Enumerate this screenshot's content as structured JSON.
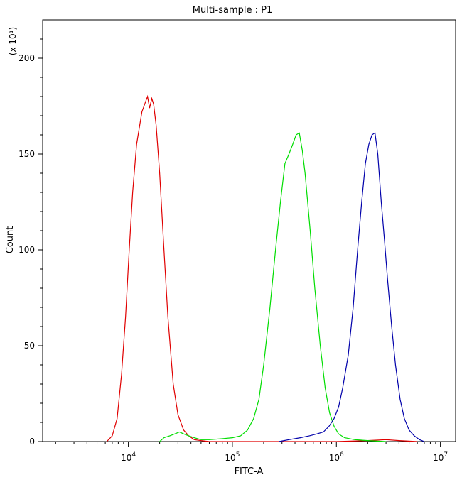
{
  "chart_data": {
    "type": "line",
    "title": "Multi-sample : P1",
    "xlabel": "FITC-A",
    "ylabel": "Count",
    "y_multiplier": "(x 10¹)",
    "x_scale": "log",
    "xlim": [
      1500,
      14000000
    ],
    "ylim": [
      0,
      220
    ],
    "x_ticks": [
      {
        "value": 10000,
        "base": "10",
        "exp": "4"
      },
      {
        "value": 100000,
        "base": "10",
        "exp": "5"
      },
      {
        "value": 1000000,
        "base": "10",
        "exp": "6"
      },
      {
        "value": 10000000,
        "base": "10",
        "exp": "7"
      }
    ],
    "y_ticks": [
      0,
      50,
      100,
      150,
      200
    ],
    "grid": false,
    "legend": "none",
    "series": [
      {
        "color": "#e00000",
        "points": [
          [
            6200,
            0
          ],
          [
            7000,
            3
          ],
          [
            7800,
            12
          ],
          [
            8600,
            35
          ],
          [
            9400,
            65
          ],
          [
            10200,
            100
          ],
          [
            11000,
            130
          ],
          [
            12000,
            155
          ],
          [
            13500,
            172
          ],
          [
            14800,
            178
          ],
          [
            15300,
            180
          ],
          [
            16000,
            174
          ],
          [
            16800,
            179
          ],
          [
            17500,
            176
          ],
          [
            18500,
            165
          ],
          [
            20000,
            140
          ],
          [
            22000,
            100
          ],
          [
            24000,
            65
          ],
          [
            27000,
            30
          ],
          [
            30000,
            14
          ],
          [
            34000,
            6
          ],
          [
            38000,
            3
          ],
          [
            43000,
            1
          ],
          [
            50000,
            0.5
          ],
          [
            60000,
            0
          ],
          [
            100000,
            0
          ],
          [
            1000000,
            0
          ],
          [
            2000000,
            0.5
          ],
          [
            3000000,
            1
          ],
          [
            4000000,
            0.5
          ],
          [
            6000000,
            0
          ]
        ]
      },
      {
        "color": "#00dd00",
        "points": [
          [
            20000,
            0
          ],
          [
            22000,
            2
          ],
          [
            25000,
            3
          ],
          [
            28000,
            4
          ],
          [
            31000,
            5
          ],
          [
            34000,
            4
          ],
          [
            38000,
            3
          ],
          [
            43000,
            2
          ],
          [
            50000,
            1
          ],
          [
            60000,
            1
          ],
          [
            80000,
            1.5
          ],
          [
            100000,
            2
          ],
          [
            120000,
            3
          ],
          [
            140000,
            6
          ],
          [
            160000,
            12
          ],
          [
            180000,
            22
          ],
          [
            200000,
            40
          ],
          [
            230000,
            70
          ],
          [
            260000,
            100
          ],
          [
            290000,
            125
          ],
          [
            320000,
            145
          ],
          [
            350000,
            150
          ],
          [
            380000,
            155
          ],
          [
            410000,
            160
          ],
          [
            440000,
            161
          ],
          [
            470000,
            152
          ],
          [
            500000,
            140
          ],
          [
            560000,
            110
          ],
          [
            620000,
            80
          ],
          [
            700000,
            50
          ],
          [
            780000,
            28
          ],
          [
            860000,
            15
          ],
          [
            950000,
            8
          ],
          [
            1050000,
            4
          ],
          [
            1200000,
            2
          ],
          [
            1500000,
            1
          ],
          [
            2000000,
            0.5
          ],
          [
            3000000,
            0
          ]
        ]
      },
      {
        "color": "#0000aa",
        "points": [
          [
            280000,
            0
          ],
          [
            350000,
            1
          ],
          [
            450000,
            2
          ],
          [
            550000,
            3
          ],
          [
            650000,
            4
          ],
          [
            750000,
            5
          ],
          [
            850000,
            8
          ],
          [
            950000,
            12
          ],
          [
            1050000,
            18
          ],
          [
            1150000,
            28
          ],
          [
            1300000,
            45
          ],
          [
            1450000,
            70
          ],
          [
            1600000,
            100
          ],
          [
            1750000,
            125
          ],
          [
            1900000,
            145
          ],
          [
            2050000,
            155
          ],
          [
            2200000,
            160
          ],
          [
            2350000,
            161
          ],
          [
            2500000,
            150
          ],
          [
            2700000,
            125
          ],
          [
            2900000,
            105
          ],
          [
            3100000,
            85
          ],
          [
            3400000,
            60
          ],
          [
            3700000,
            40
          ],
          [
            4100000,
            22
          ],
          [
            4500000,
            12
          ],
          [
            5000000,
            6
          ],
          [
            5600000,
            3
          ],
          [
            6300000,
            1
          ],
          [
            7000000,
            0
          ]
        ]
      }
    ]
  }
}
